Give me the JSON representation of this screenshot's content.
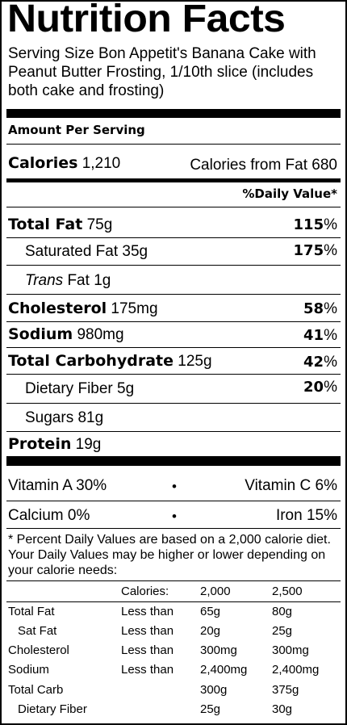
{
  "title": "Nutrition Facts",
  "serving_size": "Serving Size Bon Appetit's Banana Cake with Peanut Butter Frosting, 1/10th slice (includes both cake and frosting)",
  "amount_per_serving": "Amount Per Serving",
  "calories": {
    "label": "Calories",
    "value": "1,210",
    "from_fat_label": "Calories from Fat",
    "from_fat_value": "680"
  },
  "daily_value_header": "%Daily Value*",
  "nutrients": {
    "total_fat": {
      "label": "Total Fat",
      "amount": "75g",
      "dv": "115"
    },
    "saturated_fat": {
      "label": "Saturated Fat",
      "amount": "35g",
      "dv": "175"
    },
    "trans_fat": {
      "label": "Trans",
      "label_rest": "Fat",
      "amount": "1g"
    },
    "cholesterol": {
      "label": "Cholesterol",
      "amount": "175mg",
      "dv": "58"
    },
    "sodium": {
      "label": "Sodium",
      "amount": "980mg",
      "dv": "41"
    },
    "total_carb": {
      "label": "Total Carbohydrate",
      "amount": "125g",
      "dv": "42"
    },
    "dietary_fiber": {
      "label": "Dietary Fiber",
      "amount": "5g",
      "dv": "20"
    },
    "sugars": {
      "label": "Sugars",
      "amount": "81g"
    },
    "protein": {
      "label": "Protein",
      "amount": "19g"
    }
  },
  "percent_sign": "%",
  "bullet": "•",
  "vitamins": {
    "vitamin_a": "Vitamin A 30%",
    "vitamin_c": "Vitamin C 6%",
    "calcium": "Calcium 0%",
    "iron": "Iron 15%"
  },
  "footnote": "* Percent Daily Values are based on a 2,000 calorie diet. Your Daily Values may be higher or lower depending on your calorie needs:",
  "reference_table": {
    "header": [
      "Calories:",
      "2,000",
      "2,500"
    ],
    "rows": [
      [
        "Total Fat",
        "Less than",
        "65g",
        "80g"
      ],
      [
        "Sat Fat",
        "Less than",
        "20g",
        "25g"
      ],
      [
        "Cholesterol",
        "Less than",
        "300mg",
        "300mg"
      ],
      [
        "Sodium",
        "Less than",
        "2,400mg",
        "2,400mg"
      ],
      [
        "Total Carb",
        "",
        "300g",
        "375g"
      ],
      [
        "Dietary Fiber",
        "",
        "25g",
        "30g"
      ]
    ]
  }
}
